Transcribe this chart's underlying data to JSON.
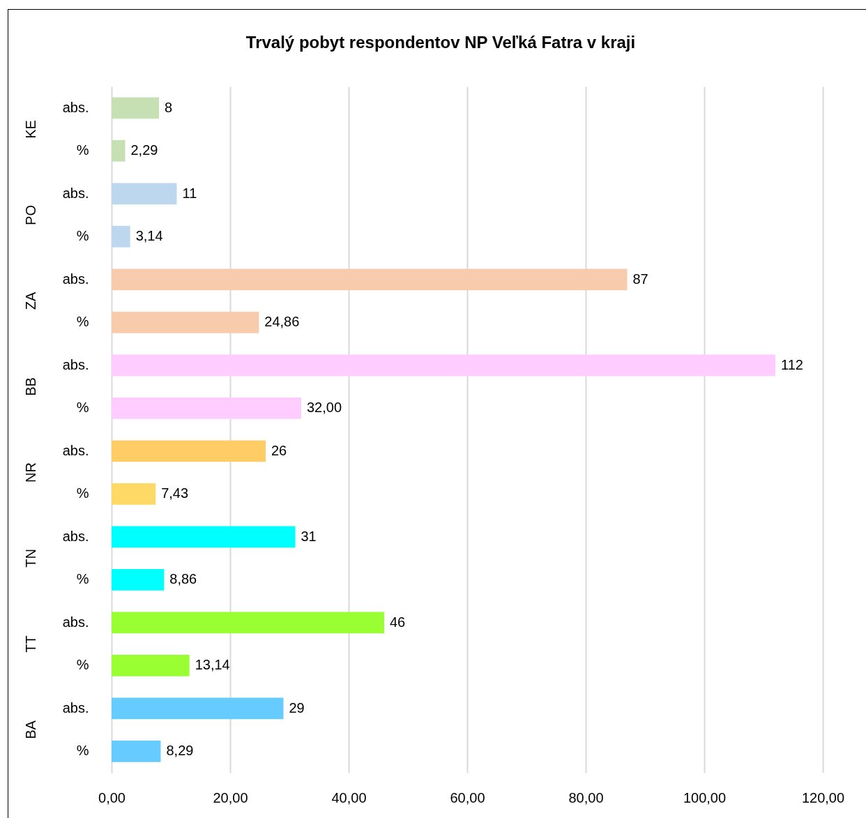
{
  "chart_data": {
    "type": "bar",
    "orientation": "horizontal",
    "title": "Trvalý pobyt respondentov NP Veľká Fatra v kraji",
    "categories": [
      "abs.",
      "%",
      "abs.",
      "%",
      "abs.",
      "%",
      "abs.",
      "%",
      "abs.",
      "%",
      "abs.",
      "%",
      "abs.",
      "%",
      "abs.",
      "%"
    ],
    "annotations": [
      "KE",
      "PO",
      "ZA",
      "BB",
      "NR",
      "TN",
      "TT",
      "BA"
    ],
    "values": [
      8,
      2.29,
      11,
      3.14,
      87,
      24.86,
      112,
      32,
      26,
      7.43,
      31,
      8.86,
      46,
      13.14,
      29,
      8.29
    ],
    "value_labels": [
      "8",
      "2,29",
      "11",
      "3,14",
      "87",
      "24,86",
      "112",
      "32,00",
      "26",
      "7,43",
      "31",
      "8,86",
      "46",
      "13,14",
      "29",
      "8,29"
    ],
    "colors": [
      "#c6e0b4",
      "#c6e0b4",
      "#bdd7ee",
      "#bdd7ee",
      "#f8cbad",
      "#f8cbad",
      "#ffccff",
      "#ffccff",
      "#ffcc66",
      "#ffd966",
      "#00ffff",
      "#00ffff",
      "#99ff33",
      "#99ff33",
      "#66ccff",
      "#66ccff"
    ],
    "xlim": [
      0,
      120
    ],
    "xticks": [
      {
        "value": 0,
        "label": "0,00"
      },
      {
        "value": 20,
        "label": "20,00"
      },
      {
        "value": 40,
        "label": "40,00"
      },
      {
        "value": 60,
        "label": "60,00"
      },
      {
        "value": 80,
        "label": "80,00"
      },
      {
        "value": 100,
        "label": "100,00"
      },
      {
        "value": 120,
        "label": "120,00"
      }
    ],
    "grid": "x"
  }
}
